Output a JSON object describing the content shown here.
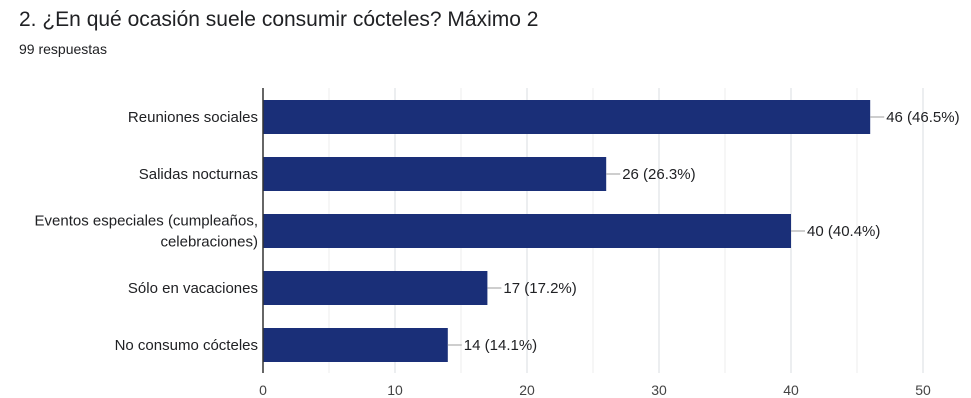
{
  "header": {
    "title": "2. ¿En qué ocasión suele consumir cócteles?  Máximo 2",
    "responses": "99 respuestas"
  },
  "chart_data": {
    "type": "bar",
    "orientation": "horizontal",
    "categories": [
      [
        "Reuniones sociales"
      ],
      [
        "Salidas nocturnas"
      ],
      [
        "Eventos especiales (cumpleaños,",
        "celebraciones)"
      ],
      [
        "Sólo en vacaciones"
      ],
      [
        "No consumo cócteles"
      ]
    ],
    "values": [
      46,
      26,
      40,
      17,
      14
    ],
    "value_labels": [
      "46 (46.5%)",
      "26 (26.3%)",
      "40 (40.4%)",
      "17 (17.2%)",
      "14 (14.1%)"
    ],
    "xlim": [
      0,
      50
    ],
    "xticks": [
      0,
      10,
      20,
      30,
      40,
      50
    ],
    "grid": true,
    "bar_color": "#1a2f78"
  }
}
